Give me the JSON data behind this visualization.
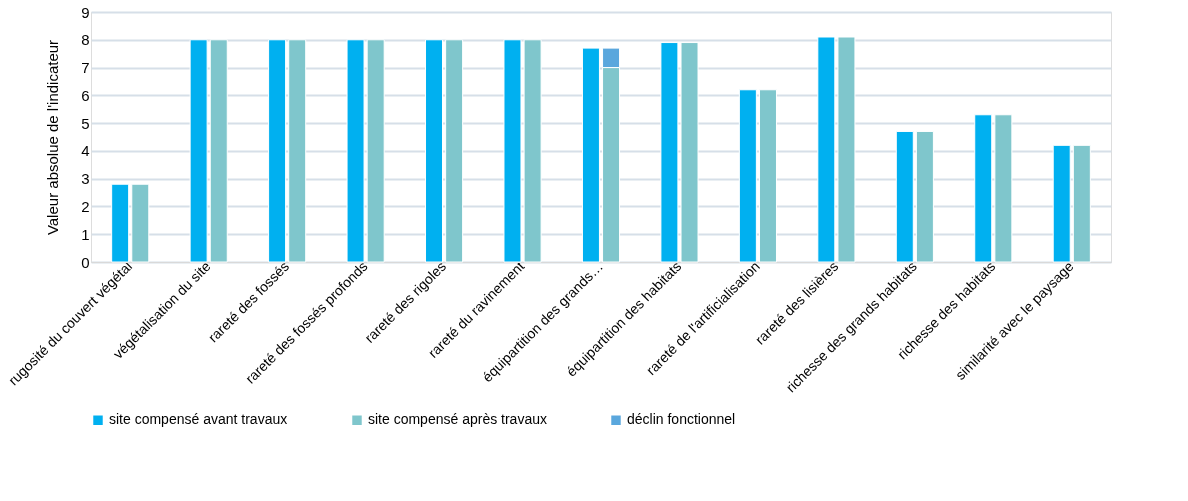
{
  "chart_data": {
    "type": "bar",
    "ylabel": "Valeur absolue de l'indicateur",
    "categories": [
      "rugosité du couvert végétal",
      "végétalisation du site",
      "rareté des fossés",
      "rareté des fossés profonds",
      "rareté des rigoles",
      "rareté du ravinement",
      "équipartition des grands…",
      "équipartition des habitats",
      "rareté de l'artificialisation",
      "rareté des lisières",
      "richesse des grands habitats",
      "richesse des habitats",
      "similarité avec le paysage"
    ],
    "series": [
      {
        "name": "site compensé avant travaux",
        "color": "#00b0f0",
        "values": [
          2.8,
          8,
          8,
          8,
          8,
          8,
          7.7,
          7.9,
          6.2,
          8.1,
          4.7,
          5.3,
          4.2
        ]
      },
      {
        "name": "site compensé après travaux",
        "color": "#7fc6cc",
        "values": [
          2.8,
          8,
          8,
          8,
          8,
          8,
          7.0,
          7.9,
          6.2,
          8.1,
          4.7,
          5.3,
          4.2
        ]
      },
      {
        "name": "déclin fonctionnel",
        "color": "#5aa7dd",
        "values": [
          null,
          null,
          null,
          null,
          null,
          null,
          0.7,
          null,
          null,
          null,
          null,
          null,
          null
        ],
        "base": [
          null,
          null,
          null,
          null,
          null,
          null,
          7.0,
          null,
          null,
          null,
          null,
          null,
          null
        ]
      }
    ],
    "ylim": [
      0,
      9
    ],
    "yticks": [
      0,
      1,
      2,
      3,
      4,
      5,
      6,
      7,
      8,
      9
    ],
    "grid": "y",
    "legend": "bottom"
  }
}
